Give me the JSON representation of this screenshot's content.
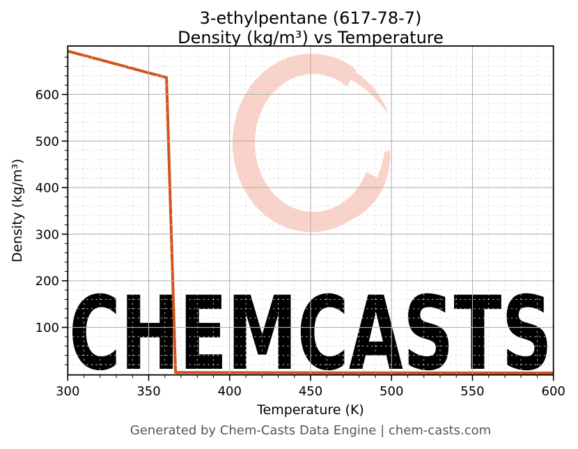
{
  "figure": {
    "title_line1": "3-ethylpentane (617-78-7)",
    "title_line2": "Density (kg/m³) vs Temperature",
    "footer": "Generated by Chem-Casts Data Engine | chem-casts.com",
    "watermark_text": "CHEMCASTS",
    "colors": {
      "line": "#d2531b",
      "watermark": "#f9d2c9",
      "grid_major": "#b2b2b2",
      "grid_minor": "#d8d8d8",
      "axis": "#000000",
      "tick_label": "#000000",
      "footer_text": "#555555",
      "background": "#ffffff"
    }
  },
  "chart_data": {
    "type": "line",
    "title": "3-ethylpentane (617-78-7) Density (kg/m³) vs Temperature",
    "xlabel": "Temperature (K)",
    "ylabel": "Density (kg/m³)",
    "xlim": [
      300,
      600
    ],
    "ylim": [
      -2,
      704
    ],
    "x_major_ticks": [
      300,
      350,
      400,
      450,
      500,
      550,
      600
    ],
    "y_major_ticks": [
      100,
      200,
      300,
      400,
      500,
      600
    ],
    "x_minor_step": 10,
    "y_minor_step": 20,
    "grid": {
      "major": true,
      "minor": true
    },
    "legend": "none",
    "tick_font_size": 18,
    "series": [
      {
        "name": "density",
        "color": "#d2531b",
        "line_width": 4,
        "points": [
          [
            300,
            693.0
          ],
          [
            310,
            683.8
          ],
          [
            320,
            674.5
          ],
          [
            330,
            665.2
          ],
          [
            340,
            655.8
          ],
          [
            350,
            646.3
          ],
          [
            361,
            636.5
          ],
          [
            366.6,
            3.4
          ],
          [
            370,
            3.3
          ],
          [
            400,
            3.0
          ],
          [
            450,
            2.7
          ],
          [
            500,
            2.4
          ],
          [
            550,
            2.2
          ],
          [
            600,
            2.0
          ]
        ]
      }
    ]
  }
}
